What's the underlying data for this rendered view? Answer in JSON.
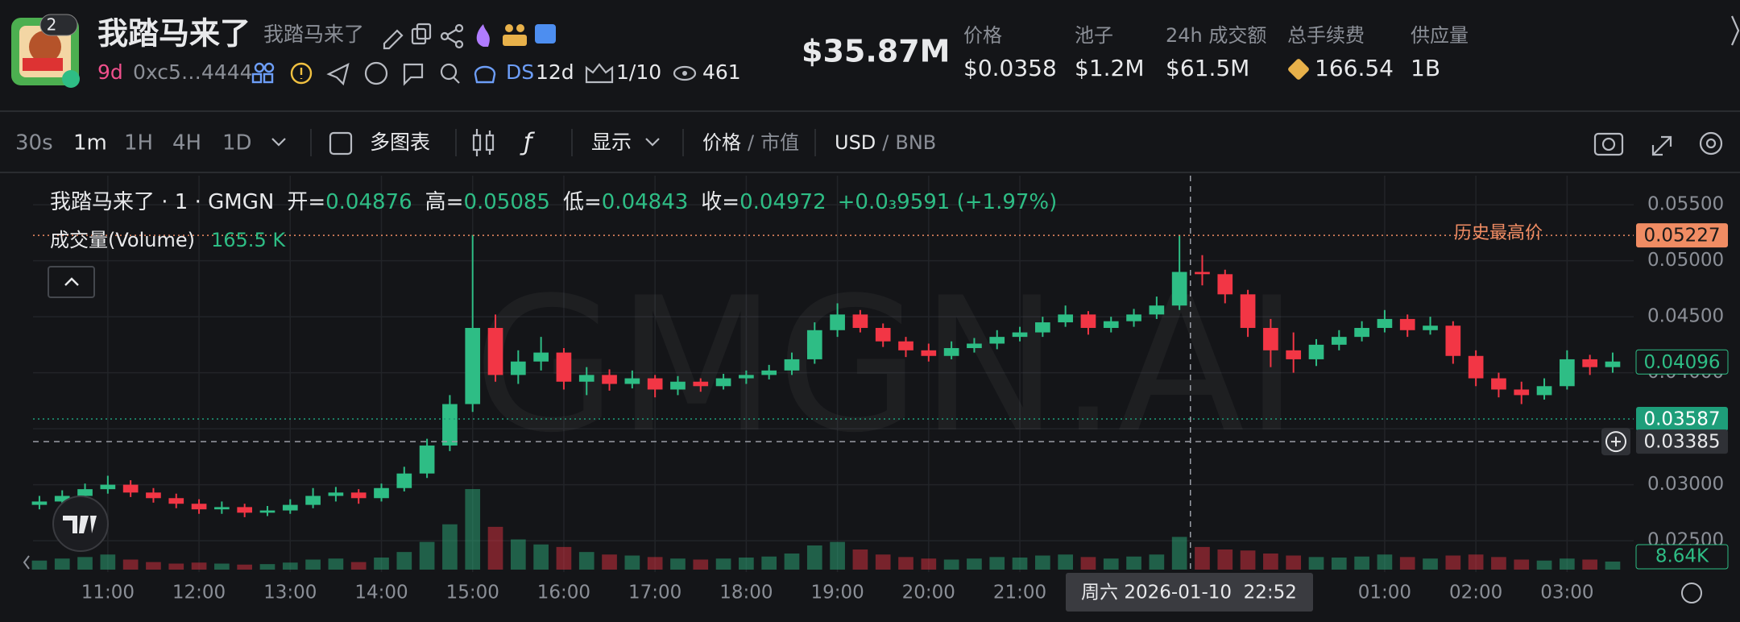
{
  "header": {
    "badge": "2",
    "title": "我踏马来了",
    "subtitle": "我踏马来了",
    "age": "9d",
    "address": "0xc5…4444",
    "ds": "DS",
    "ds_age": "12d",
    "ratio": "1/10",
    "views": "461",
    "market_cap": "$35.87M",
    "stats": [
      {
        "label": "价格",
        "value": "$0.0358"
      },
      {
        "label": "池子",
        "value": "$1.2M"
      },
      {
        "label": "24h 成交额",
        "value": "$61.5M"
      },
      {
        "label": "总手续费",
        "value": "166.54"
      },
      {
        "label": "供应量",
        "value": "1B"
      }
    ]
  },
  "toolbar": {
    "intervals": [
      "30s",
      "1m",
      "1H",
      "4H",
      "1D"
    ],
    "multi_chart": "多图表",
    "display": "显示",
    "price_mode": [
      "价格",
      "/",
      "市值"
    ],
    "currency": [
      "USD",
      "/",
      "BNB"
    ]
  },
  "chart_data": {
    "type": "candlestick",
    "title": "我踏马来了 · 1 · GMGN",
    "ohlc_legend": [
      {
        "label": "开=",
        "value": 0.04876
      },
      {
        "label": "高=",
        "value": 0.05085
      },
      {
        "label": "低=",
        "value": 0.04843
      },
      {
        "label": "收=",
        "value": 0.04972
      }
    ],
    "change": "+0.0₃9591 (+1.97%)",
    "volume_title": "成交量(Volume)",
    "volume_label": "165.5 K",
    "volume_last_label": "8.64K",
    "watermark": "GMGN.AI",
    "up_color": "#2ebd85",
    "down_color": "#f23645",
    "grid": true,
    "x": [
      10.25,
      10.5,
      10.75,
      11,
      11.25,
      11.5,
      11.75,
      12,
      12.25,
      12.5,
      12.75,
      13,
      13.25,
      13.5,
      13.75,
      14,
      14.25,
      14.5,
      14.75,
      15,
      15.25,
      15.5,
      15.75,
      16,
      16.25,
      16.5,
      16.75,
      17,
      17.25,
      17.5,
      17.75,
      18,
      18.25,
      18.5,
      18.75,
      19,
      19.25,
      19.5,
      19.75,
      20,
      20.25,
      20.5,
      20.75,
      21,
      21.25,
      21.5,
      21.75,
      22,
      22.25,
      22.5,
      22.75,
      23,
      23.25,
      23.5,
      23.75,
      24,
      24.25,
      24.5,
      24.75,
      25,
      25.25,
      25.5,
      25.75,
      26,
      26.25,
      26.5,
      26.75,
      27,
      27.25,
      27.5
    ],
    "open": [
      0.0282,
      0.0285,
      0.029,
      0.0296,
      0.03,
      0.0293,
      0.0288,
      0.0283,
      0.0278,
      0.028,
      0.0275,
      0.0277,
      0.0282,
      0.029,
      0.0293,
      0.0288,
      0.0297,
      0.031,
      0.0335,
      0.0372,
      0.044,
      0.0398,
      0.041,
      0.0418,
      0.0392,
      0.0398,
      0.039,
      0.0395,
      0.0385,
      0.0392,
      0.0388,
      0.0395,
      0.0398,
      0.0402,
      0.0412,
      0.0438,
      0.0452,
      0.044,
      0.0428,
      0.042,
      0.0415,
      0.0422,
      0.0426,
      0.0432,
      0.0436,
      0.0445,
      0.0452,
      0.044,
      0.0446,
      0.0452,
      0.046,
      0.049,
      0.0488,
      0.047,
      0.044,
      0.042,
      0.0412,
      0.0425,
      0.0432,
      0.044,
      0.0448,
      0.0438,
      0.0442,
      0.0415,
      0.0395,
      0.0385,
      0.038,
      0.0388,
      0.0412,
      0.0405
    ],
    "high": [
      0.029,
      0.0295,
      0.0301,
      0.0308,
      0.0304,
      0.0297,
      0.0292,
      0.0287,
      0.0285,
      0.0283,
      0.0281,
      0.0287,
      0.0297,
      0.0298,
      0.0296,
      0.0301,
      0.0316,
      0.0341,
      0.038,
      0.0523,
      0.0452,
      0.042,
      0.0432,
      0.0422,
      0.0405,
      0.0403,
      0.0402,
      0.0398,
      0.0397,
      0.0395,
      0.0399,
      0.0402,
      0.0407,
      0.0418,
      0.0445,
      0.0462,
      0.0456,
      0.0444,
      0.0432,
      0.0426,
      0.0428,
      0.0431,
      0.0438,
      0.0441,
      0.045,
      0.046,
      0.0455,
      0.045,
      0.0457,
      0.0468,
      0.0523,
      0.0505,
      0.0492,
      0.0474,
      0.0448,
      0.0436,
      0.043,
      0.0438,
      0.0446,
      0.0456,
      0.0452,
      0.045,
      0.0446,
      0.042,
      0.04,
      0.0392,
      0.0395,
      0.042,
      0.0416,
      0.0418
    ],
    "low": [
      0.0278,
      0.0282,
      0.0286,
      0.0292,
      0.0289,
      0.0284,
      0.0279,
      0.0274,
      0.0274,
      0.0271,
      0.0272,
      0.0274,
      0.0279,
      0.0285,
      0.0283,
      0.0285,
      0.0294,
      0.0306,
      0.033,
      0.0365,
      0.0392,
      0.039,
      0.0402,
      0.0385,
      0.038,
      0.0384,
      0.0386,
      0.0378,
      0.038,
      0.0383,
      0.0385,
      0.039,
      0.0394,
      0.0398,
      0.0408,
      0.0432,
      0.0436,
      0.0423,
      0.0414,
      0.041,
      0.0412,
      0.0418,
      0.0421,
      0.0428,
      0.0432,
      0.0441,
      0.0434,
      0.0436,
      0.0441,
      0.0448,
      0.0456,
      0.0478,
      0.0462,
      0.0432,
      0.0405,
      0.04,
      0.0406,
      0.042,
      0.0428,
      0.0436,
      0.0432,
      0.0434,
      0.0408,
      0.0388,
      0.0378,
      0.0372,
      0.0376,
      0.0385,
      0.0398,
      0.04
    ],
    "close": [
      0.0285,
      0.029,
      0.0296,
      0.03,
      0.0293,
      0.0288,
      0.0283,
      0.0278,
      0.028,
      0.0275,
      0.0277,
      0.0282,
      0.029,
      0.0293,
      0.0288,
      0.0297,
      0.031,
      0.0335,
      0.0372,
      0.044,
      0.0398,
      0.041,
      0.0418,
      0.0392,
      0.0398,
      0.039,
      0.0395,
      0.0385,
      0.0392,
      0.0388,
      0.0395,
      0.0398,
      0.0402,
      0.0412,
      0.0438,
      0.0452,
      0.044,
      0.0428,
      0.042,
      0.0415,
      0.0422,
      0.0426,
      0.0432,
      0.0436,
      0.0445,
      0.0452,
      0.044,
      0.0446,
      0.0452,
      0.046,
      0.049,
      0.0488,
      0.047,
      0.044,
      0.042,
      0.0412,
      0.0425,
      0.0432,
      0.044,
      0.0448,
      0.0438,
      0.0442,
      0.0415,
      0.0395,
      0.0385,
      0.038,
      0.0388,
      0.0412,
      0.0405,
      0.041
    ],
    "volume": [
      18,
      22,
      25,
      30,
      20,
      15,
      12,
      14,
      12,
      10,
      11,
      14,
      20,
      22,
      15,
      24,
      35,
      55,
      90,
      160,
      85,
      60,
      50,
      45,
      35,
      30,
      28,
      25,
      22,
      20,
      22,
      24,
      26,
      32,
      48,
      55,
      40,
      30,
      25,
      22,
      20,
      22,
      25,
      24,
      28,
      30,
      25,
      22,
      26,
      30,
      65,
      45,
      40,
      38,
      32,
      28,
      25,
      24,
      26,
      30,
      25,
      22,
      28,
      30,
      25,
      20,
      18,
      22,
      20,
      16
    ],
    "xlim": [
      10.18,
      27.73
    ],
    "xticks": [
      {
        "value": 11,
        "label": "11:00"
      },
      {
        "value": 12,
        "label": "12:00"
      },
      {
        "value": 13,
        "label": "13:00"
      },
      {
        "value": 14,
        "label": "14:00"
      },
      {
        "value": 15,
        "label": "15:00"
      },
      {
        "value": 16,
        "label": "16:00"
      },
      {
        "value": 17,
        "label": "17:00"
      },
      {
        "value": 18,
        "label": "18:00"
      },
      {
        "value": 19,
        "label": "19:00"
      },
      {
        "value": 20,
        "label": "20:00"
      },
      {
        "value": 21,
        "label": "21:00"
      },
      {
        "value": 25,
        "label": "01:00"
      },
      {
        "value": 26,
        "label": "02:00"
      },
      {
        "value": 27,
        "label": "03:00"
      }
    ],
    "ylim": [
      0.0222,
      0.0576
    ],
    "yticks": [
      {
        "value": 0.025,
        "label": "0.02500"
      },
      {
        "value": 0.03,
        "label": "0.03000"
      },
      {
        "value": 0.035,
        "label": "0.03500"
      },
      {
        "value": 0.04,
        "label": "0.04000"
      },
      {
        "value": 0.045,
        "label": "0.04500"
      },
      {
        "value": 0.05,
        "label": "0.05000"
      },
      {
        "value": 0.055,
        "label": "0.05500"
      }
    ],
    "ath": {
      "label": "历史最高价",
      "value": 0.05227,
      "color": "#f08c63"
    },
    "last_price": {
      "value": 0.04096,
      "color": "#2ebd85"
    },
    "price_line": {
      "value": 0.03587,
      "color": "#1e9e7a"
    },
    "crosshair": {
      "x": 22.87,
      "y": 0.03385,
      "x_label": "周六 2026-01-10  22:52"
    }
  }
}
